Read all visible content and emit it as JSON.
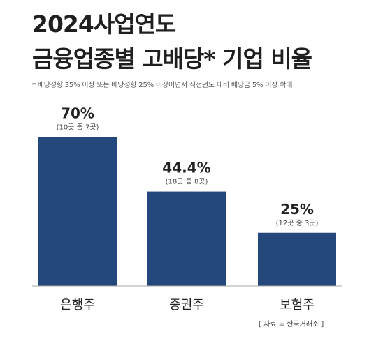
{
  "title_line1": "2024사업연도",
  "title_line2": "금융업종별 고배당* 기업 비율",
  "footnote": "*  배당성향 35% 이상 또는 배당성향 25% 이상이면서 직전년도 대비 배당금 5% 이상 확대",
  "source": "[ 자료 = 한국거래소 ]",
  "colors": {
    "bar": "#24477c",
    "baseline": "#aaaaaa",
    "text": "#222222"
  },
  "chart_data": {
    "type": "bar",
    "categories": [
      "은행주",
      "증권주",
      "보험주"
    ],
    "values": [
      70,
      44.4,
      25
    ],
    "value_labels": [
      "70%",
      "44.4%",
      "25%"
    ],
    "sub_labels": [
      "(10곳 중 7곳)",
      "(18곳 중 8곳)",
      "(12곳 중 3곳)"
    ],
    "ylim": [
      0,
      100
    ],
    "title": "2024사업연도 금융업종별 고배당* 기업 비율",
    "xlabel": "",
    "ylabel": "",
    "grid": false,
    "legend": "none"
  }
}
